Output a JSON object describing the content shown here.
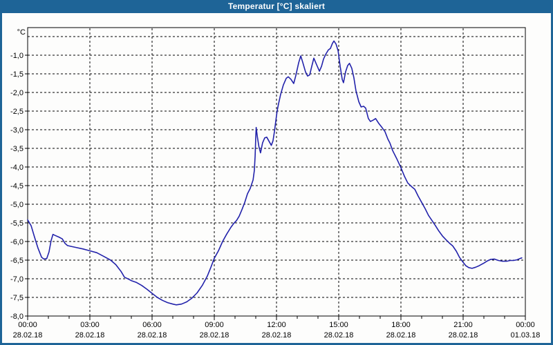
{
  "window": {
    "title": "Temperatur [°C] skaliert",
    "titlebar_color": "#1e6497",
    "border_color": "#1e6497",
    "background": "#fdfdfc"
  },
  "chart_data": {
    "type": "line",
    "title": "Temperatur [°C] skaliert",
    "y_unit_label": "°C",
    "line_color": "#2121aa",
    "grid_color": "#000000",
    "axis_color": "#000000",
    "plot_background": "#fdfdfc",
    "xlabel": "",
    "ylabel": "°C",
    "x_hours_range": [
      0,
      24
    ],
    "ylim": [
      -8.0,
      -0.26
    ],
    "y_gridline_values": [
      -0.5,
      -1.0,
      -1.5,
      -2.0,
      -2.5,
      -3.0,
      -3.5,
      -4.0,
      -4.5,
      -5.0,
      -5.5,
      -6.0,
      -6.5,
      -7.0,
      -7.5
    ],
    "y_axis_labels": [
      {
        "v": -1.0,
        "label": "-1,0"
      },
      {
        "v": -1.5,
        "label": "-1,5"
      },
      {
        "v": -2.0,
        "label": "-2,0"
      },
      {
        "v": -2.5,
        "label": "-2,5"
      },
      {
        "v": -3.0,
        "label": "-3,0"
      },
      {
        "v": -3.5,
        "label": "-3,5"
      },
      {
        "v": -4.0,
        "label": "-4,0"
      },
      {
        "v": -4.5,
        "label": "-4,5"
      },
      {
        "v": -5.0,
        "label": "-5,0"
      },
      {
        "v": -5.5,
        "label": "-5,5"
      },
      {
        "v": -6.0,
        "label": "-6,0"
      },
      {
        "v": -6.5,
        "label": "-6,5"
      },
      {
        "v": -7.0,
        "label": "-7,0"
      },
      {
        "v": -7.5,
        "label": "-7,5"
      },
      {
        "v": -8.0,
        "label": "-8,0"
      }
    ],
    "x_ticks": [
      {
        "h": 0,
        "time": "00:00",
        "date": "28.02.18"
      },
      {
        "h": 3,
        "time": "03:00",
        "date": "28.02.18"
      },
      {
        "h": 6,
        "time": "06:00",
        "date": "28.02.18"
      },
      {
        "h": 9,
        "time": "09:00",
        "date": "28.02.18"
      },
      {
        "h": 12,
        "time": "12:00",
        "date": "28.02.18"
      },
      {
        "h": 15,
        "time": "15:00",
        "date": "28.02.18"
      },
      {
        "h": 18,
        "time": "18:00",
        "date": "28.02.18"
      },
      {
        "h": 21,
        "time": "21:00",
        "date": "28.02.18"
      },
      {
        "h": 24,
        "time": "00:00",
        "date": "01.03.18"
      }
    ],
    "minor_x_tick_every_hours": 1,
    "points": [
      [
        0.0,
        -5.42
      ],
      [
        0.17,
        -5.58
      ],
      [
        0.33,
        -5.88
      ],
      [
        0.5,
        -6.18
      ],
      [
        0.67,
        -6.42
      ],
      [
        0.78,
        -6.47
      ],
      [
        0.92,
        -6.46
      ],
      [
        1.03,
        -6.28
      ],
      [
        1.13,
        -5.98
      ],
      [
        1.22,
        -5.81
      ],
      [
        1.33,
        -5.84
      ],
      [
        1.5,
        -5.88
      ],
      [
        1.67,
        -5.93
      ],
      [
        1.8,
        -6.05
      ],
      [
        1.92,
        -6.11
      ],
      [
        2.08,
        -6.13
      ],
      [
        2.33,
        -6.16
      ],
      [
        2.67,
        -6.2
      ],
      [
        3.0,
        -6.25
      ],
      [
        3.33,
        -6.3
      ],
      [
        3.67,
        -6.4
      ],
      [
        4.0,
        -6.5
      ],
      [
        4.25,
        -6.62
      ],
      [
        4.5,
        -6.8
      ],
      [
        4.67,
        -6.96
      ],
      [
        4.83,
        -7.0
      ],
      [
        5.0,
        -7.05
      ],
      [
        5.25,
        -7.1
      ],
      [
        5.5,
        -7.18
      ],
      [
        5.75,
        -7.28
      ],
      [
        6.0,
        -7.39
      ],
      [
        6.25,
        -7.5
      ],
      [
        6.5,
        -7.58
      ],
      [
        6.75,
        -7.64
      ],
      [
        7.0,
        -7.68
      ],
      [
        7.17,
        -7.7
      ],
      [
        7.42,
        -7.68
      ],
      [
        7.67,
        -7.62
      ],
      [
        7.92,
        -7.52
      ],
      [
        8.17,
        -7.38
      ],
      [
        8.42,
        -7.18
      ],
      [
        8.67,
        -6.92
      ],
      [
        8.83,
        -6.7
      ],
      [
        9.0,
        -6.45
      ],
      [
        9.2,
        -6.25
      ],
      [
        9.4,
        -6.0
      ],
      [
        9.6,
        -5.8
      ],
      [
        9.8,
        -5.62
      ],
      [
        9.93,
        -5.52
      ],
      [
        10.07,
        -5.44
      ],
      [
        10.2,
        -5.32
      ],
      [
        10.33,
        -5.15
      ],
      [
        10.47,
        -4.95
      ],
      [
        10.6,
        -4.72
      ],
      [
        10.73,
        -4.58
      ],
      [
        10.87,
        -4.35
      ],
      [
        10.93,
        -4.1
      ],
      [
        10.97,
        -3.7
      ],
      [
        11.0,
        -3.2
      ],
      [
        11.02,
        -2.94
      ],
      [
        11.08,
        -3.2
      ],
      [
        11.15,
        -3.45
      ],
      [
        11.23,
        -3.62
      ],
      [
        11.33,
        -3.35
      ],
      [
        11.43,
        -3.22
      ],
      [
        11.53,
        -3.2
      ],
      [
        11.63,
        -3.3
      ],
      [
        11.75,
        -3.42
      ],
      [
        11.83,
        -3.3
      ],
      [
        11.9,
        -3.05
      ],
      [
        11.97,
        -2.75
      ],
      [
        12.03,
        -2.5
      ],
      [
        12.1,
        -2.3
      ],
      [
        12.2,
        -2.05
      ],
      [
        12.33,
        -1.8
      ],
      [
        12.47,
        -1.62
      ],
      [
        12.57,
        -1.58
      ],
      [
        12.7,
        -1.65
      ],
      [
        12.83,
        -1.76
      ],
      [
        12.93,
        -1.55
      ],
      [
        13.07,
        -1.2
      ],
      [
        13.17,
        -1.02
      ],
      [
        13.27,
        -1.2
      ],
      [
        13.4,
        -1.45
      ],
      [
        13.5,
        -1.56
      ],
      [
        13.6,
        -1.53
      ],
      [
        13.7,
        -1.3
      ],
      [
        13.8,
        -1.08
      ],
      [
        13.93,
        -1.25
      ],
      [
        14.07,
        -1.43
      ],
      [
        14.17,
        -1.3
      ],
      [
        14.27,
        -1.1
      ],
      [
        14.37,
        -0.98
      ],
      [
        14.5,
        -0.86
      ],
      [
        14.6,
        -0.82
      ],
      [
        14.7,
        -0.68
      ],
      [
        14.77,
        -0.62
      ],
      [
        14.87,
        -0.7
      ],
      [
        14.97,
        -0.88
      ],
      [
        15.07,
        -1.3
      ],
      [
        15.17,
        -1.65
      ],
      [
        15.23,
        -1.74
      ],
      [
        15.33,
        -1.45
      ],
      [
        15.43,
        -1.28
      ],
      [
        15.52,
        -1.22
      ],
      [
        15.63,
        -1.35
      ],
      [
        15.73,
        -1.6
      ],
      [
        15.83,
        -1.95
      ],
      [
        15.97,
        -2.25
      ],
      [
        16.08,
        -2.39
      ],
      [
        16.2,
        -2.37
      ],
      [
        16.3,
        -2.42
      ],
      [
        16.43,
        -2.7
      ],
      [
        16.53,
        -2.78
      ],
      [
        16.67,
        -2.74
      ],
      [
        16.78,
        -2.7
      ],
      [
        16.93,
        -2.83
      ],
      [
        17.1,
        -2.95
      ],
      [
        17.23,
        -3.05
      ],
      [
        17.37,
        -3.25
      ],
      [
        17.47,
        -3.36
      ],
      [
        17.6,
        -3.56
      ],
      [
        17.8,
        -3.78
      ],
      [
        18.0,
        -4.02
      ],
      [
        18.17,
        -4.25
      ],
      [
        18.33,
        -4.43
      ],
      [
        18.5,
        -4.52
      ],
      [
        18.67,
        -4.6
      ],
      [
        18.83,
        -4.78
      ],
      [
        19.0,
        -4.95
      ],
      [
        19.17,
        -5.12
      ],
      [
        19.33,
        -5.3
      ],
      [
        19.5,
        -5.44
      ],
      [
        19.67,
        -5.58
      ],
      [
        19.83,
        -5.72
      ],
      [
        20.0,
        -5.85
      ],
      [
        20.17,
        -5.95
      ],
      [
        20.33,
        -6.04
      ],
      [
        20.5,
        -6.12
      ],
      [
        20.67,
        -6.26
      ],
      [
        20.83,
        -6.43
      ],
      [
        21.0,
        -6.56
      ],
      [
        21.13,
        -6.65
      ],
      [
        21.27,
        -6.7
      ],
      [
        21.43,
        -6.72
      ],
      [
        21.6,
        -6.69
      ],
      [
        21.77,
        -6.65
      ],
      [
        22.0,
        -6.58
      ],
      [
        22.17,
        -6.52
      ],
      [
        22.33,
        -6.48
      ],
      [
        22.5,
        -6.47
      ],
      [
        22.7,
        -6.51
      ],
      [
        22.9,
        -6.53
      ],
      [
        23.1,
        -6.53
      ],
      [
        23.27,
        -6.51
      ],
      [
        23.43,
        -6.51
      ],
      [
        23.6,
        -6.49
      ],
      [
        23.77,
        -6.45
      ],
      [
        23.83,
        -6.44
      ]
    ]
  }
}
